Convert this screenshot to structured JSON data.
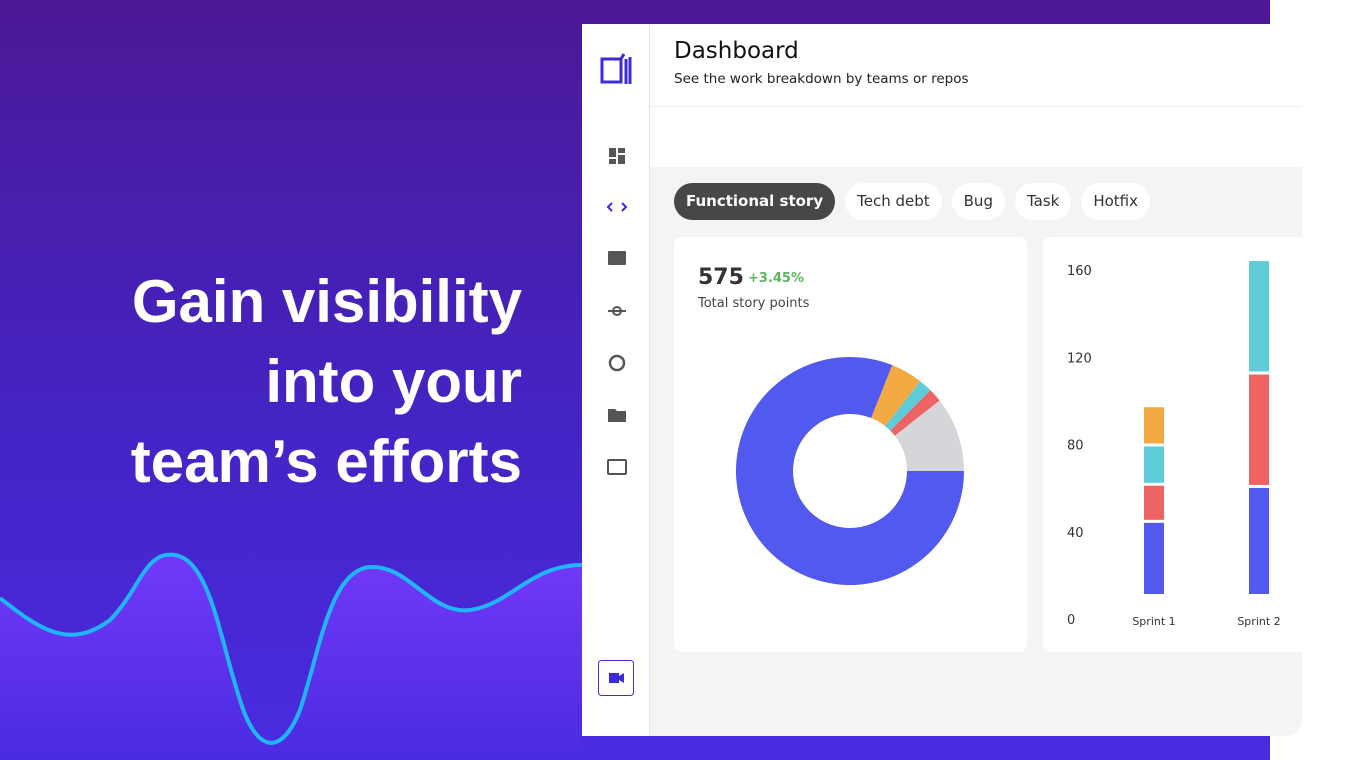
{
  "hero": {
    "headline": [
      "Gain visibility",
      "into your",
      "team’s efforts"
    ]
  },
  "app": {
    "title": "Dashboard",
    "subtitle": "See the work breakdown by teams or repos",
    "tabs": [
      "Functional story",
      "Tech debt",
      "Bug",
      "Task",
      "Hotfix"
    ],
    "active_tab": 0
  },
  "summary": {
    "value": "575",
    "change": "+3.45%",
    "label": "Total story points"
  },
  "chart_data": [
    {
      "type": "donut",
      "values": [
        61,
        11,
        11,
        26,
        466
      ],
      "colors": [
        "#d6d6da",
        "#ee6464",
        "#5ecbd8",
        "#f4aa42",
        "#5159ee"
      ]
    },
    {
      "type": "stacked_bar",
      "categories": [
        "Sprint 1",
        "Sprint 2"
      ],
      "series": [
        {
          "color": "#5159ee",
          "values": [
            34,
            50
          ]
        },
        {
          "color": "#ee6464",
          "values": [
            17,
            52
          ]
        },
        {
          "color": "#5ecbd8",
          "values": [
            18,
            52
          ]
        },
        {
          "color": "#f4aa42",
          "values": [
            18,
            0
          ]
        }
      ],
      "ylim": [
        0,
        160
      ],
      "yticks": [
        0,
        40,
        80,
        120,
        160
      ]
    }
  ]
}
